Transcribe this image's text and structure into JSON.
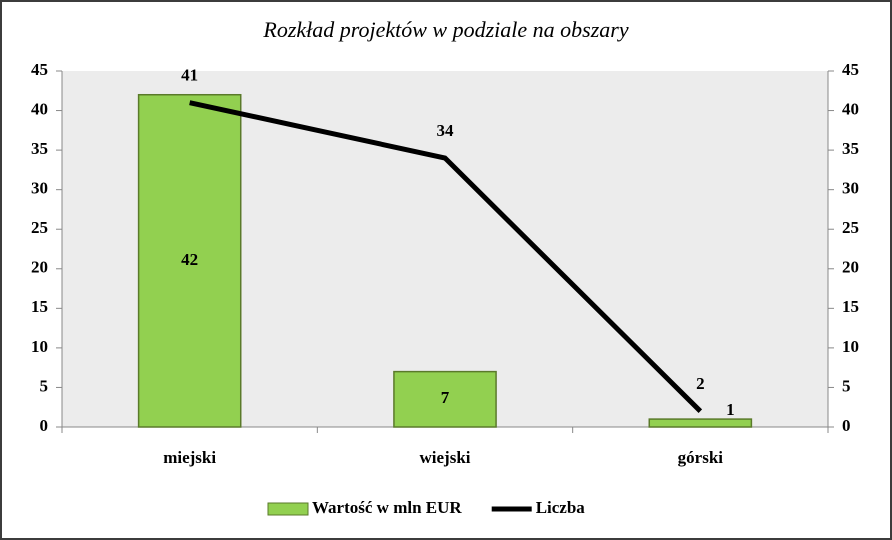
{
  "chart_data": {
    "type": "bar",
    "title": "Rozkład projektów w podziale na obszary",
    "categories": [
      "miejski",
      "wiejski",
      "górski"
    ],
    "series": [
      {
        "name": "Wartość w mln EUR",
        "type": "bar",
        "color": "#92d050",
        "values": [
          42,
          7,
          1
        ]
      },
      {
        "name": "Liczba",
        "type": "line",
        "axis": "y2",
        "color": "#000000",
        "values": [
          41,
          34,
          2
        ]
      }
    ],
    "ylim": [
      0,
      45
    ],
    "yticks": [
      0,
      5,
      10,
      15,
      20,
      25,
      30,
      35,
      40,
      45
    ],
    "y2lim": [
      0,
      45
    ],
    "y2ticks": [
      0,
      5,
      10,
      15,
      20,
      25,
      30,
      35,
      40,
      45
    ],
    "legend": "bottom"
  }
}
